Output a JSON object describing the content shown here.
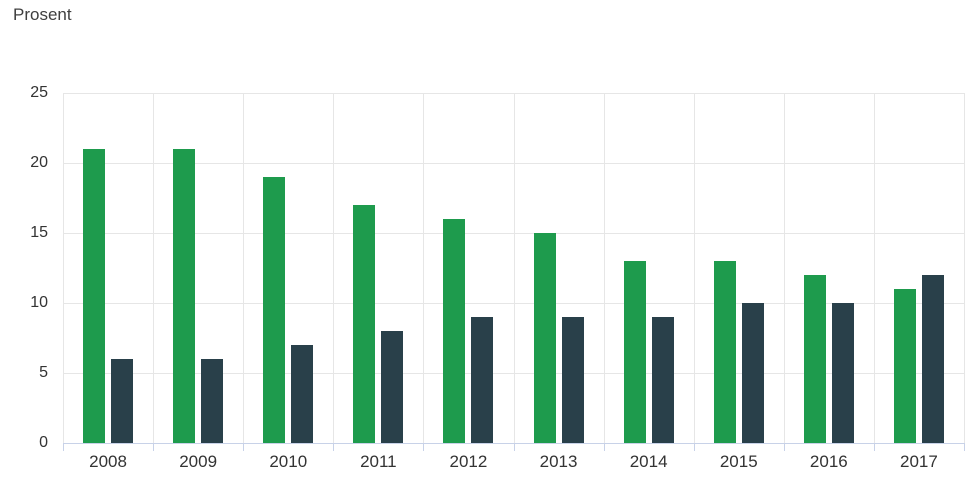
{
  "chart_data": {
    "type": "bar",
    "title": "",
    "xlabel": "",
    "ylabel": "Prosent",
    "categories": [
      "2008",
      "2009",
      "2010",
      "2011",
      "2012",
      "2013",
      "2014",
      "2015",
      "2016",
      "2017"
    ],
    "series": [
      {
        "color": "#1e9b4d",
        "values": [
          21,
          21,
          19,
          17,
          16,
          15,
          13,
          13,
          12,
          11
        ]
      },
      {
        "color": "#29404a",
        "values": [
          6,
          6,
          7,
          8,
          9,
          9,
          9,
          10,
          10,
          12
        ]
      }
    ],
    "ylim": [
      0,
      25
    ],
    "yticks": [
      0,
      5,
      10,
      15,
      20,
      25
    ],
    "grid": true,
    "legend_position": "none"
  },
  "axis_colors": {
    "gridline": "#e6e6e6",
    "axis_line": "#c8d2e8"
  }
}
